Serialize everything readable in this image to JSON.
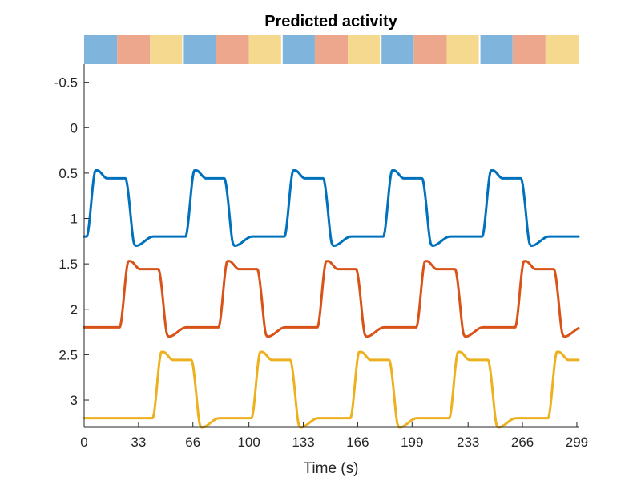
{
  "chart_data": {
    "type": "line",
    "title": "Predicted activity",
    "xlabel": "Time (s)",
    "ylabel": "",
    "xlim": [
      0,
      300
    ],
    "ylim": [
      -0.7,
      3.3
    ],
    "y_reversed": true,
    "grid": false,
    "xticks": [
      0,
      33,
      66,
      100,
      133,
      166,
      199,
      233,
      266,
      299
    ],
    "xtick_labels": [
      "0",
      "33",
      "66",
      "100",
      "133",
      "166",
      "199",
      "233",
      "266",
      "299"
    ],
    "yticks": [
      -0.5,
      0,
      0.5,
      1,
      1.5,
      2,
      2.5,
      3
    ],
    "ytick_labels": [
      "-0.5",
      "0",
      "0.5",
      "1",
      "1.5",
      "2",
      "2.5",
      "3"
    ],
    "condition_bar": {
      "colors": [
        "#7fb4dd",
        "#eca78d",
        "#f5d98e"
      ],
      "blocks": [
        {
          "start": 0,
          "end": 20,
          "condition": 0
        },
        {
          "start": 20,
          "end": 40,
          "condition": 1
        },
        {
          "start": 40,
          "end": 60,
          "condition": 2
        },
        {
          "start": 60,
          "end": 80,
          "condition": 0
        },
        {
          "start": 80,
          "end": 100,
          "condition": 1
        },
        {
          "start": 100,
          "end": 120,
          "condition": 2
        },
        {
          "start": 120,
          "end": 140,
          "condition": 0
        },
        {
          "start": 140,
          "end": 160,
          "condition": 1
        },
        {
          "start": 160,
          "end": 180,
          "condition": 2
        },
        {
          "start": 180,
          "end": 200,
          "condition": 0
        },
        {
          "start": 200,
          "end": 220,
          "condition": 1
        },
        {
          "start": 220,
          "end": 240,
          "condition": 2
        },
        {
          "start": 240,
          "end": 260,
          "condition": 0
        },
        {
          "start": 260,
          "end": 280,
          "condition": 1
        },
        {
          "start": 280,
          "end": 300,
          "condition": 2
        }
      ]
    },
    "series": [
      {
        "color": "#0072bd",
        "offset": 0,
        "baseline": 1.2,
        "peak": 0.47,
        "trough": 1.3,
        "onset": 0,
        "period": 60
      },
      {
        "color": "#d95319",
        "offset": 1,
        "baseline": 2.2,
        "peak": 1.47,
        "trough": 2.3,
        "onset": 20,
        "period": 60
      },
      {
        "color": "#edb120",
        "offset": 2,
        "baseline": 3.2,
        "peak": 2.47,
        "trough": 3.3,
        "onset": 40,
        "period": 60
      }
    ]
  }
}
